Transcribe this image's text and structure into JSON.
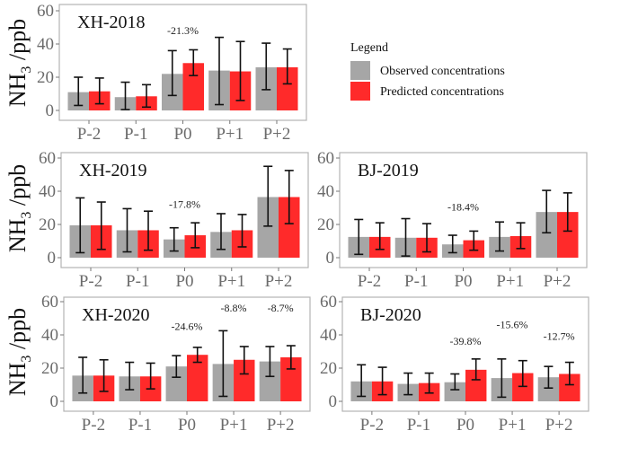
{
  "chart_data": {
    "type": "bar",
    "ylabel_main": "NH",
    "ylabel_sub": "3",
    "ylabel_unit": "/ppb",
    "categories": [
      "P-2",
      "P-1",
      "P0",
      "P+1",
      "P+2"
    ],
    "y_ticks": [
      "0",
      "20",
      "40",
      "60"
    ],
    "ylim": [
      0,
      60
    ],
    "grid": false,
    "legend": {
      "title": "Legend",
      "placement": "top-right",
      "entries": [
        {
          "name": "Observed concentrations",
          "color": "#a6a6a6"
        },
        {
          "name": "Predicted concentrations",
          "color": "#ff2a2a"
        }
      ]
    },
    "panels": [
      {
        "title": "XH-2018",
        "series": [
          {
            "name": "Observed concentrations",
            "values": [
              11,
              8,
              22,
              24,
              26
            ],
            "err_low": [
              3,
              0.5,
              9,
              3.5,
              12.5
            ],
            "err_high": [
              20,
              17,
              36,
              44,
              40.5
            ]
          },
          {
            "name": "Predicted concentrations",
            "values": [
              11.5,
              8.5,
              28.5,
              23.5,
              26
            ],
            "err_low": [
              4,
              2,
              21,
              6,
              16
            ],
            "err_high": [
              19.5,
              15.5,
              36.5,
              41.5,
              37
            ]
          }
        ],
        "annotations": [
          {
            "category": "P0",
            "text": "-21.3%",
            "y": 46
          }
        ]
      },
      {
        "title": "XH-2019",
        "series": [
          {
            "name": "Observed concentrations",
            "values": [
              19.5,
              16.5,
              11,
              15.5,
              36.5
            ],
            "err_low": [
              3,
              3.5,
              4,
              5,
              19
            ],
            "err_high": [
              36,
              29.5,
              18,
              26.5,
              55
            ]
          },
          {
            "name": "Predicted concentrations",
            "values": [
              19.5,
              16.5,
              13.5,
              16.5,
              36.5
            ],
            "err_low": [
              5,
              4.5,
              6,
              6.5,
              20.5
            ],
            "err_high": [
              33.5,
              28,
              21,
              26,
              52.5
            ]
          }
        ],
        "annotations": [
          {
            "category": "P0",
            "text": "-17.8%",
            "y": 30
          }
        ]
      },
      {
        "title": "BJ-2019",
        "series": [
          {
            "name": "Observed concentrations",
            "values": [
              12.5,
              12,
              8,
              12.5,
              27.5
            ],
            "err_low": [
              2,
              1,
              3,
              4,
              15
            ],
            "err_high": [
              23,
              23.5,
              13.5,
              21.5,
              40.5
            ]
          },
          {
            "name": "Predicted concentrations",
            "values": [
              12.5,
              12,
              10.5,
              13,
              27.5
            ],
            "err_low": [
              5,
              3.5,
              4.5,
              5.5,
              16
            ],
            "err_high": [
              21,
              20.5,
              16,
              21,
              39
            ]
          }
        ],
        "annotations": [
          {
            "category": "P0",
            "text": "-18.4%",
            "y": 28.5
          }
        ]
      },
      {
        "title": "XH-2020",
        "series": [
          {
            "name": "Observed concentrations",
            "values": [
              15.5,
              15,
              21,
              22.5,
              24
            ],
            "err_low": [
              5,
              7,
              14.5,
              3,
              15
            ],
            "err_high": [
              26.5,
              23.5,
              27.5,
              42.5,
              33
            ]
          },
          {
            "name": "Predicted concentrations",
            "values": [
              15.5,
              15,
              28,
              25,
              26.5
            ],
            "err_low": [
              6,
              7.5,
              23.5,
              16.5,
              19.5
            ],
            "err_high": [
              25,
              23,
              32.5,
              33,
              33.5
            ]
          }
        ],
        "annotations": [
          {
            "category": "P0",
            "text": "-24.6%",
            "y": 43
          },
          {
            "category": "P+1",
            "text": "-8.8%",
            "y": 54
          },
          {
            "category": "P+2",
            "text": "-8.7%",
            "y": 54
          }
        ]
      },
      {
        "title": "BJ-2020",
        "series": [
          {
            "name": "Observed concentrations",
            "values": [
              12,
              10.5,
              11.5,
              14,
              14.5
            ],
            "err_low": [
              3,
              4,
              7,
              2.5,
              8
            ],
            "err_high": [
              22,
              17,
              16.5,
              25.5,
              21
            ]
          },
          {
            "name": "Predicted concentrations",
            "values": [
              12,
              11,
              19,
              17,
              16.5
            ],
            "err_low": [
              4,
              5,
              13,
              9,
              10
            ],
            "err_high": [
              20.5,
              17,
              25.5,
              24.5,
              23.5
            ]
          }
        ],
        "annotations": [
          {
            "category": "P0",
            "text": "-39.8%",
            "y": 34
          },
          {
            "category": "P+1",
            "text": "-15.6%",
            "y": 44
          },
          {
            "category": "P+2",
            "text": "-12.7%",
            "y": 37
          }
        ]
      }
    ]
  }
}
